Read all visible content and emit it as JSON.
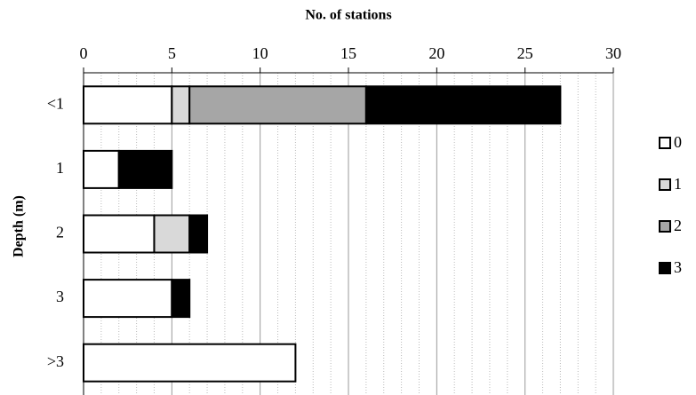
{
  "chart_data": {
    "type": "stacked-barh",
    "x_label": "No. of stations",
    "y_label": "Depth (m)",
    "categories": [
      "<1",
      "1",
      "2",
      "3",
      ">3"
    ],
    "series": [
      {
        "name": "0",
        "color": "#ffffff",
        "values": [
          5,
          2,
          4,
          5,
          12
        ]
      },
      {
        "name": "1",
        "color": "#d9d9d9",
        "values": [
          1,
          0,
          2,
          0,
          0
        ]
      },
      {
        "name": "2",
        "color": "#a6a6a6",
        "values": [
          10,
          0,
          0,
          0,
          0
        ]
      },
      {
        "name": "3",
        "color": "#000000",
        "values": [
          11,
          3,
          1,
          1,
          0
        ]
      }
    ],
    "xlim": [
      0,
      30
    ],
    "xticks": [
      0,
      5,
      10,
      15,
      20,
      25,
      30
    ],
    "xminorticks": [
      1,
      2,
      3,
      4,
      6,
      7,
      8,
      9,
      11,
      12,
      13,
      14,
      16,
      17,
      18,
      19,
      21,
      22,
      23,
      24,
      26,
      27,
      28,
      29
    ],
    "grid": true,
    "legend": "right"
  }
}
